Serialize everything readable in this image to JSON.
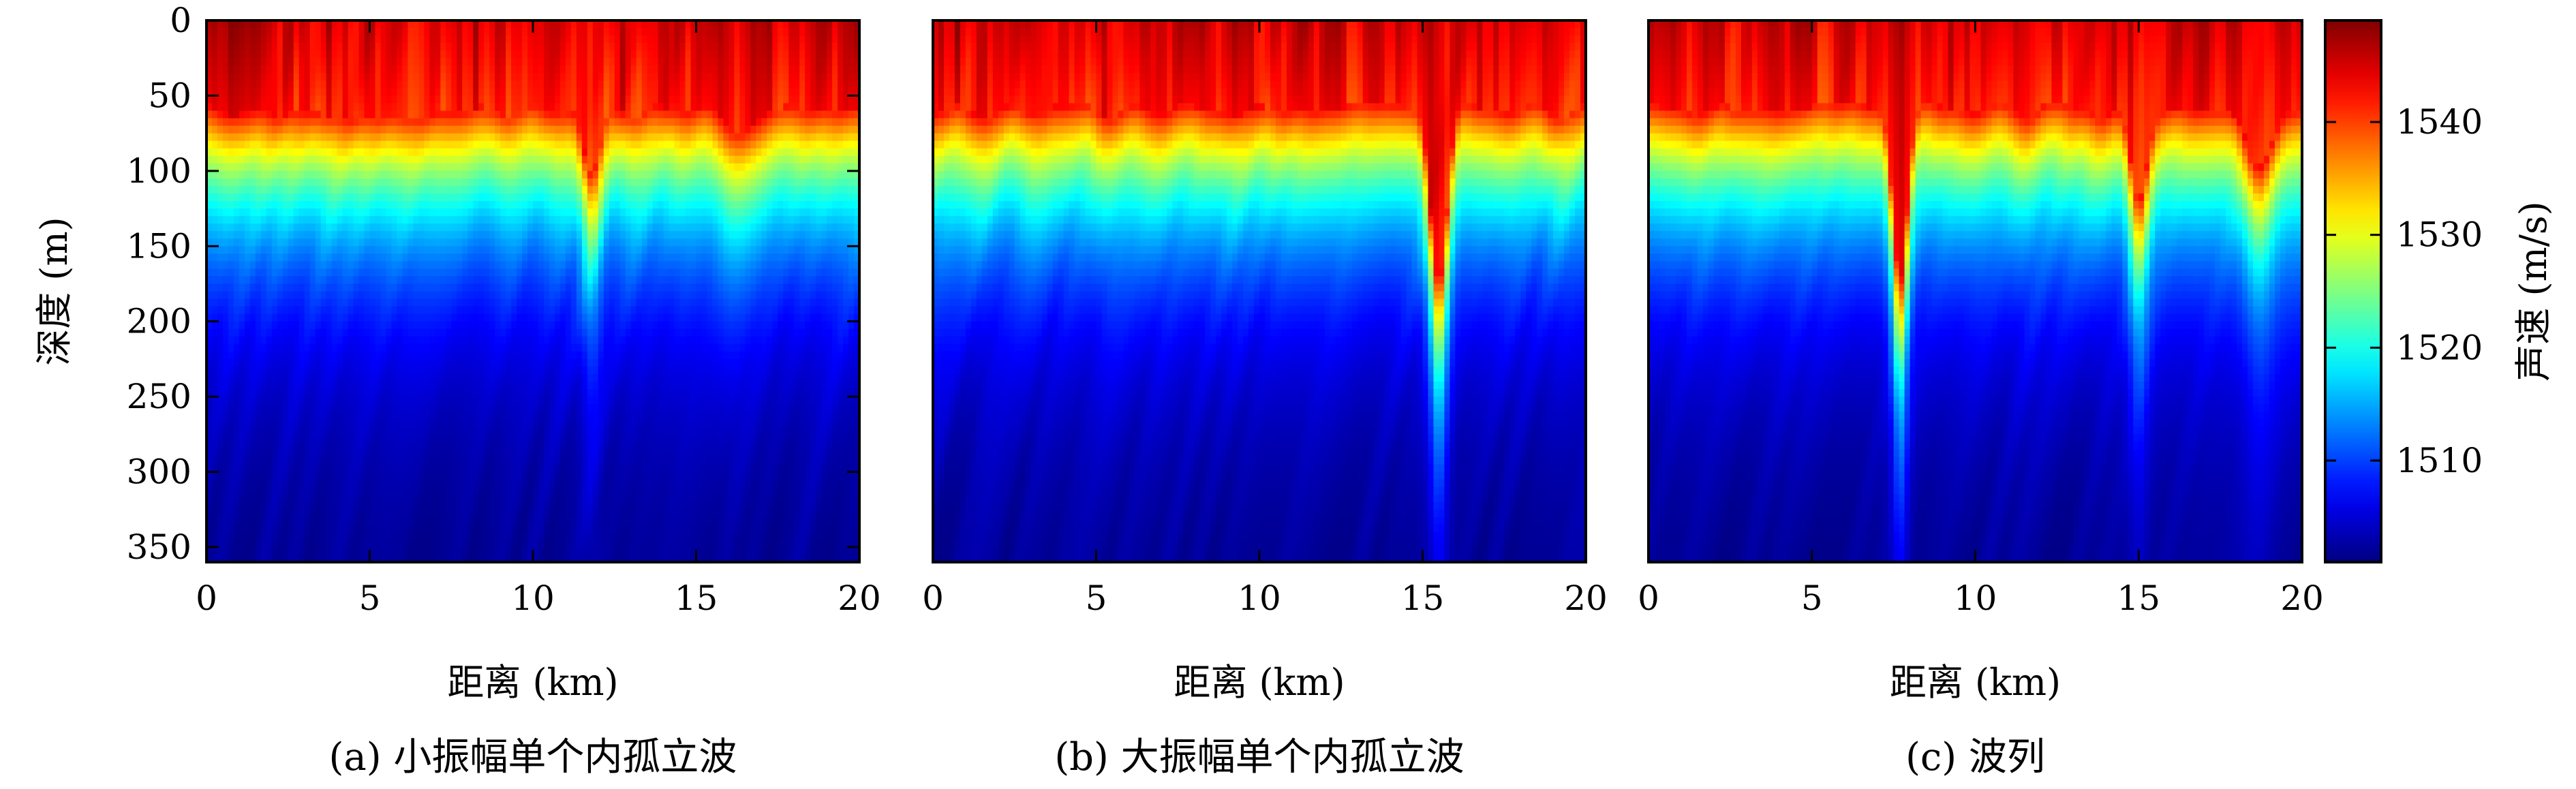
{
  "colorbar": {
    "label": "声速 (m/s)",
    "range": [
      1501,
      1549
    ],
    "ticks": [
      1510,
      1520,
      1530,
      1540
    ],
    "colormap": "jet"
  },
  "chart_data": [
    {
      "type": "heatmap",
      "caption": "(a) 小振幅单个内孤立波",
      "xlabel": "距离 (km)",
      "ylabel": "深度 (m)",
      "xlim": [
        0,
        20
      ],
      "ylim": [
        0,
        360
      ],
      "y_inverted": true,
      "xticks": [
        0,
        5,
        10,
        15,
        20
      ],
      "yticks": [
        0,
        50,
        100,
        150,
        200,
        250,
        300,
        350
      ],
      "waves": [
        {
          "x_km": 11.8,
          "amplitude_m": 45,
          "width_km": 0.35
        },
        {
          "x_km": 16.2,
          "amplitude_m": 15,
          "width_km": 0.6
        }
      ]
    },
    {
      "type": "heatmap",
      "caption": "(b) 大振幅单个内孤立波",
      "xlabel": "距离 (km)",
      "ylabel": "",
      "xlim": [
        0,
        20
      ],
      "ylim": [
        0,
        360
      ],
      "y_inverted": true,
      "xticks": [
        0,
        5,
        10,
        15,
        20
      ],
      "yticks": [],
      "waves": [
        {
          "x_km": 15.5,
          "amplitude_m": 110,
          "width_km": 0.35
        }
      ]
    },
    {
      "type": "heatmap",
      "caption": "(c) 波列",
      "xlabel": "距离 (km)",
      "ylabel": "",
      "xlim": [
        0,
        20
      ],
      "ylim": [
        0,
        360
      ],
      "y_inverted": true,
      "xticks": [
        0,
        5,
        10,
        15,
        20
      ],
      "yticks": [],
      "waves": [
        {
          "x_km": 7.7,
          "amplitude_m": 110,
          "width_km": 0.3
        },
        {
          "x_km": 15.0,
          "amplitude_m": 60,
          "width_km": 0.35
        },
        {
          "x_km": 18.7,
          "amplitude_m": 35,
          "width_km": 0.5
        }
      ]
    }
  ]
}
